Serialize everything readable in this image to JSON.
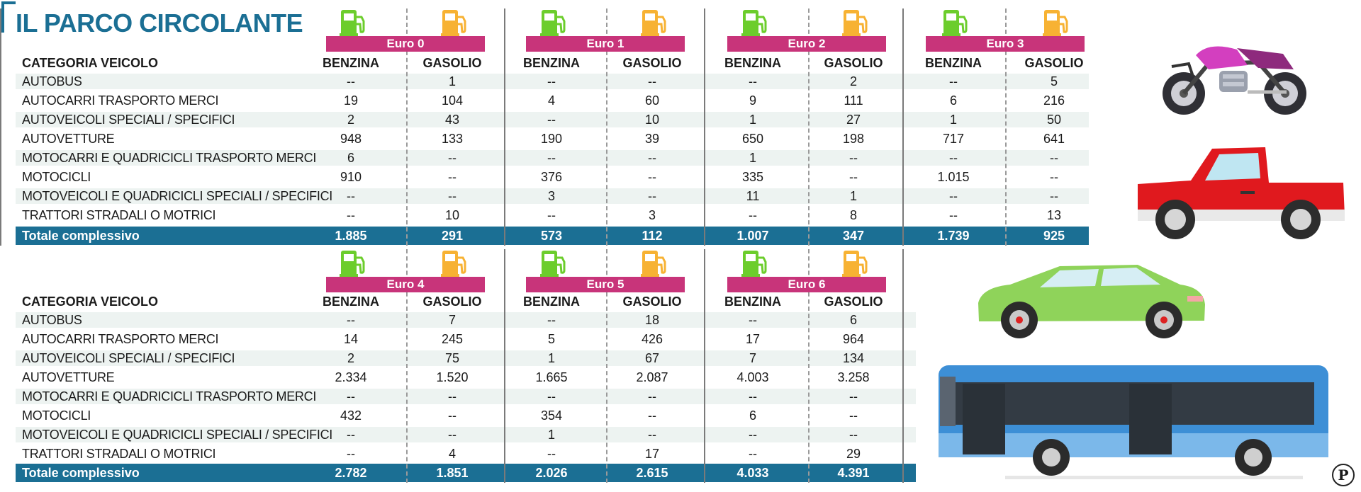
{
  "title": "IL PARCO CIRCOLANTE",
  "category_header": "CATEGORIA VEICOLO",
  "fuel_headers": [
    "BENZINA",
    "GASOLIO"
  ],
  "total_label": "Totale complessivo",
  "categories": [
    "AUTOBUS",
    "AUTOCARRI TRASPORTO MERCI",
    "AUTOVEICOLI SPECIALI / SPECIFICI",
    "AUTOVETTURE",
    "MOTOCARRI E QUADRICICLI TRASPORTO MERCI",
    "MOTOCICLI",
    "MOTOVEICOLI E QUADRICICLI SPECIALI / SPECIFICI",
    "TRATTORI STRADALI O MOTRICI"
  ],
  "table_top": {
    "groups": [
      {
        "euro": "Euro 0",
        "benzina": [
          "--",
          "19",
          "2",
          "948",
          "6",
          "910",
          "--",
          "--"
        ],
        "gasolio": [
          "1",
          "104",
          "43",
          "133",
          "--",
          "--",
          "--",
          "10"
        ],
        "tot_benzina": "1.885",
        "tot_gasolio": "291"
      },
      {
        "euro": "Euro 1",
        "benzina": [
          "--",
          "4",
          "--",
          "190",
          "--",
          "376",
          "3",
          "--"
        ],
        "gasolio": [
          "--",
          "60",
          "10",
          "39",
          "--",
          "--",
          "--",
          "3"
        ],
        "tot_benzina": "573",
        "tot_gasolio": "112"
      },
      {
        "euro": "Euro 2",
        "benzina": [
          "--",
          "9",
          "1",
          "650",
          "1",
          "335",
          "11",
          "--"
        ],
        "gasolio": [
          "2",
          "111",
          "27",
          "198",
          "--",
          "--",
          "1",
          "8"
        ],
        "tot_benzina": "1.007",
        "tot_gasolio": "347"
      },
      {
        "euro": "Euro 3",
        "benzina": [
          "--",
          "6",
          "1",
          "717",
          "--",
          "1.015",
          "--",
          "--"
        ],
        "gasolio": [
          "5",
          "216",
          "50",
          "641",
          "--",
          "--",
          "--",
          "13"
        ],
        "tot_benzina": "1.739",
        "tot_gasolio": "925"
      }
    ]
  },
  "table_bottom": {
    "groups": [
      {
        "euro": "Euro 4",
        "benzina": [
          "--",
          "14",
          "2",
          "2.334",
          "--",
          "432",
          "--",
          "--"
        ],
        "gasolio": [
          "7",
          "245",
          "75",
          "1.520",
          "--",
          "--",
          "--",
          "4"
        ],
        "tot_benzina": "2.782",
        "tot_gasolio": "1.851"
      },
      {
        "euro": "Euro 5",
        "benzina": [
          "--",
          "5",
          "1",
          "1.665",
          "--",
          "354",
          "1",
          "--"
        ],
        "gasolio": [
          "18",
          "426",
          "67",
          "2.087",
          "--",
          "--",
          "--",
          "17"
        ],
        "tot_benzina": "2.026",
        "tot_gasolio": "2.615"
      },
      {
        "euro": "Euro 6",
        "benzina": [
          "--",
          "17",
          "7",
          "4.003",
          "--",
          "6",
          "--",
          "--"
        ],
        "gasolio": [
          "6",
          "964",
          "134",
          "3.258",
          "--",
          "--",
          "--",
          "29"
        ],
        "tot_benzina": "4.033",
        "tot_gasolio": "4.391"
      }
    ]
  },
  "colors": {
    "accent": "#1b6f94",
    "euro_label": "#c8347a",
    "benzina_pump": "#6ccd2c",
    "gasolio_pump": "#f7b233",
    "row_band": "#edf3f1"
  },
  "icons": {
    "benzina": "fuel-pump-icon",
    "gasolio": "fuel-pump-icon",
    "logo": "publisher-logo-icon"
  },
  "logo_text": "P"
}
